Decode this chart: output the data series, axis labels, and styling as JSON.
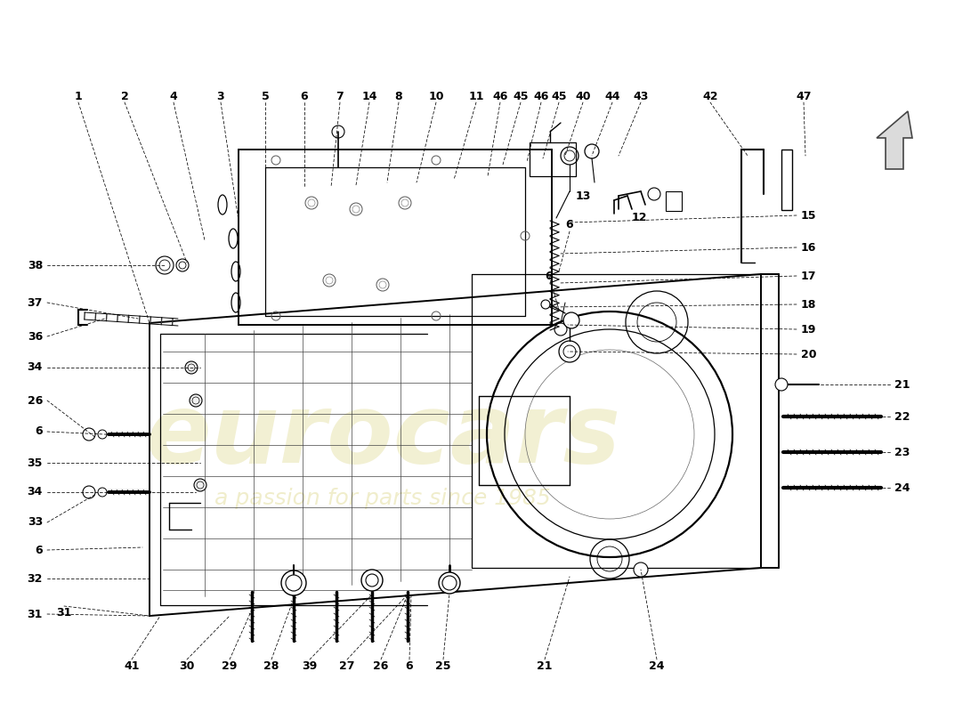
{
  "background_color": "#ffffff",
  "line_color": "#000000",
  "lw_main": 1.4,
  "lw_detail": 0.9,
  "lw_thin": 0.6,
  "label_fs": 9,
  "watermark_text1": "eurocars",
  "watermark_text2": "a passion for parts since 1985",
  "watermark_color": "#e8e4b0",
  "watermark_alpha": 0.55,
  "top_labels": [
    [
      "1",
      88
    ],
    [
      "2",
      140
    ],
    [
      "4",
      195
    ],
    [
      "3",
      248
    ],
    [
      "5",
      298
    ],
    [
      "6",
      342
    ],
    [
      "7",
      382
    ],
    [
      "14",
      415
    ],
    [
      "8",
      448
    ],
    [
      "10",
      490
    ],
    [
      "11",
      535
    ],
    [
      "46",
      565
    ],
    [
      "45",
      588
    ],
    [
      "46",
      610
    ],
    [
      "45",
      630
    ],
    [
      "40",
      658
    ],
    [
      "44",
      690
    ],
    [
      "43",
      722
    ],
    [
      "42",
      800
    ],
    [
      "47",
      905
    ]
  ],
  "left_labels": [
    [
      "38",
      57
    ],
    [
      "37",
      100
    ],
    [
      "36",
      140
    ],
    [
      "34",
      195
    ],
    [
      "26",
      243
    ],
    [
      "6",
      280
    ],
    [
      "35",
      312
    ],
    [
      "34",
      348
    ],
    [
      "33",
      383
    ],
    [
      "6",
      415
    ],
    [
      "32",
      453
    ],
    [
      "31",
      498
    ]
  ],
  "right_labels": [
    [
      "15",
      195
    ],
    [
      "16",
      233
    ],
    [
      "17",
      268
    ],
    [
      "18",
      303
    ],
    [
      "19",
      335
    ],
    [
      "20",
      368
    ]
  ],
  "right_stud_labels": [
    [
      "21",
      430
    ],
    [
      "22",
      465
    ],
    [
      "23",
      505
    ],
    [
      "24",
      540
    ]
  ],
  "bottom_labels": [
    [
      "41",
      150
    ],
    [
      "30",
      210
    ],
    [
      "29",
      258
    ],
    [
      "28",
      308
    ],
    [
      "39",
      350
    ],
    [
      "27",
      393
    ],
    [
      "26",
      432
    ],
    [
      "6",
      462
    ],
    [
      "25",
      498
    ],
    [
      "21",
      615
    ],
    [
      "24",
      740
    ]
  ]
}
